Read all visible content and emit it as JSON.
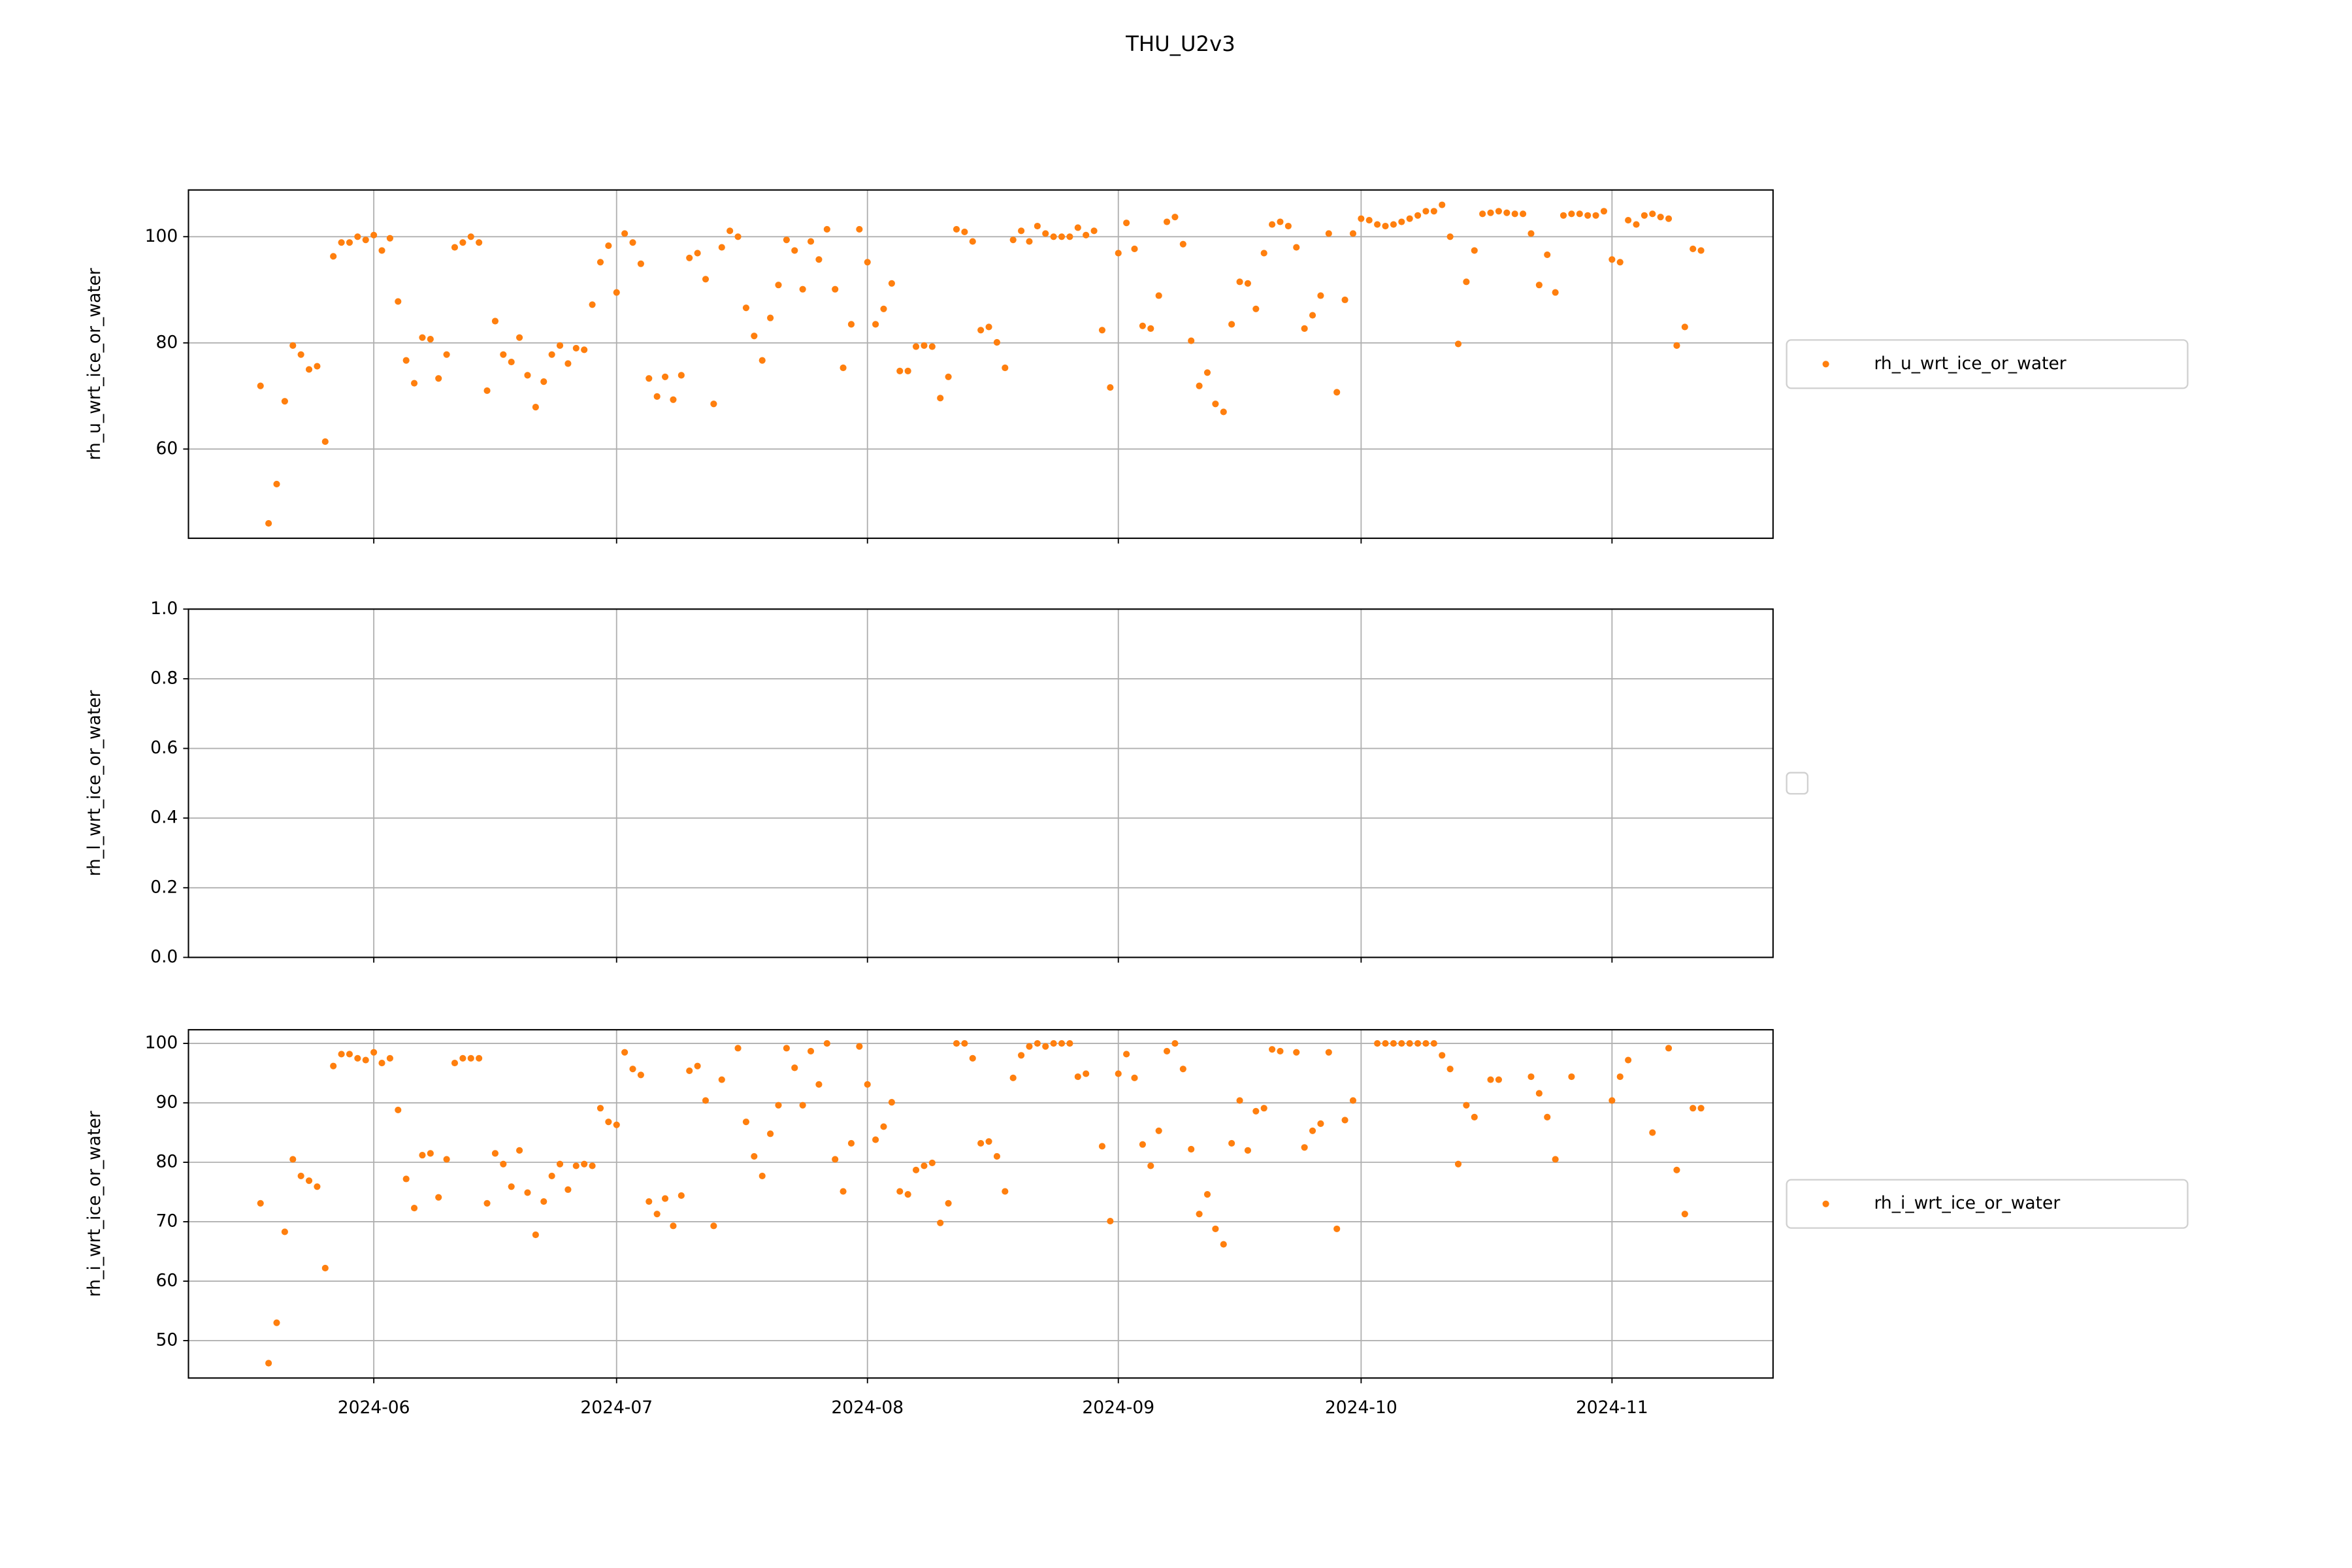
{
  "title": "THU_U2v3",
  "chart_data": [
    {
      "type": "scatter",
      "ylabel": "rh_u_wrt_ice_or_water",
      "x": [
        19861,
        19862,
        19863,
        19864,
        19865,
        19866,
        19867,
        19868,
        19869,
        19870,
        19871,
        19872,
        19873,
        19874,
        19875,
        19876,
        19877,
        19878,
        19879,
        19880,
        19881,
        19882,
        19883,
        19884,
        19885,
        19886,
        19887,
        19888,
        19889,
        19890,
        19891,
        19892,
        19893,
        19894,
        19895,
        19896,
        19897,
        19898,
        19899,
        19900,
        19901,
        19902,
        19903,
        19904,
        19905,
        19906,
        19907,
        19908,
        19909,
        19910,
        19911,
        19912,
        19913,
        19914,
        19915,
        19916,
        19917,
        19918,
        19919,
        19920,
        19921,
        19922,
        19923,
        19924,
        19925,
        19926,
        19927,
        19928,
        19929,
        19930,
        19931,
        19932,
        19933,
        19934,
        19935,
        19936,
        19937,
        19938,
        19939,
        19940,
        19941,
        19942,
        19943,
        19944,
        19945,
        19946,
        19947,
        19948,
        19949,
        19950,
        19951,
        19952,
        19953,
        19954,
        19955,
        19956,
        19957,
        19958,
        19959,
        19960,
        19961,
        19962,
        19963,
        19964,
        19965,
        19966,
        19967,
        19968,
        19969,
        19970,
        19971,
        19972,
        19973,
        19974,
        19975,
        19976,
        19977,
        19978,
        19979,
        19980,
        19981,
        19982,
        19983,
        19984,
        19985,
        19986,
        19987,
        19988,
        19989,
        19990,
        19991,
        19992,
        19993,
        19994,
        19995,
        19996,
        19997,
        19998,
        19999,
        20000,
        20001,
        20002,
        20003,
        20004,
        20005,
        20006,
        20007,
        20008,
        20009,
        20010,
        20011,
        20012,
        20013,
        20014,
        20015,
        20016,
        20017,
        20018,
        20019,
        20020,
        20021,
        20022,
        20023,
        20024,
        20025,
        20026,
        20027,
        20028,
        20029,
        20030,
        20031,
        20032,
        20033,
        20034,
        20035,
        20036,
        20037,
        20038,
        20039
      ],
      "series": [
        {
          "name": "rh_u_wrt_ice_or_water",
          "color": "#ff7f0e",
          "values": [
            71.9,
            46.0,
            53.4,
            69.0,
            79.5,
            77.8,
            75.0,
            75.6,
            61.4,
            96.3,
            98.9,
            98.9,
            100,
            99.4,
            100.3,
            97.4,
            99.7,
            87.8,
            76.7,
            72.4,
            81.0,
            80.7,
            73.3,
            77.8,
            98.0,
            98.9,
            100,
            98.9,
            71.0,
            84.1,
            77.8,
            76.4,
            81.0,
            73.9,
            67.9,
            72.7,
            77.8,
            79.5,
            76.1,
            79.0,
            78.7,
            87.2,
            95.2,
            98.3,
            89.5,
            100.6,
            98.9,
            94.9,
            73.3,
            69.9,
            73.6,
            69.3,
            73.9,
            96.0,
            96.9,
            92.0,
            68.5,
            98.0,
            101.1,
            100,
            86.6,
            81.3,
            76.7,
            84.7,
            90.9,
            99.4,
            97.4,
            90.1,
            99.1,
            95.7,
            101.4,
            90.1,
            75.3,
            83.5,
            101.4,
            95.2,
            83.5,
            86.4,
            91.2,
            74.7,
            74.7,
            79.3,
            79.5,
            79.3,
            69.6,
            73.6,
            101.4,
            100.9,
            99.1,
            82.4,
            83.0,
            80.1,
            75.3,
            99.4,
            101.1,
            99.1,
            102.0,
            100.6,
            100,
            100,
            100,
            101.7,
            100.3,
            101.1,
            82.4,
            71.6,
            96.9,
            102.6,
            97.7,
            83.2,
            82.7,
            88.9,
            102.8,
            103.7,
            98.6,
            80.4,
            71.9,
            74.4,
            68.5,
            67.0,
            83.5,
            91.5,
            91.2,
            86.4,
            96.9,
            102.3,
            102.8,
            102.0,
            98.0,
            82.7,
            85.2,
            88.9,
            100.6,
            70.7,
            88.1,
            100.6,
            103.4,
            103.1,
            102.3,
            102.0,
            102.3,
            102.8,
            103.4,
            104.0,
            104.8,
            104.8,
            106.0,
            100,
            79.8,
            91.5,
            97.4,
            104.3,
            104.5,
            104.8,
            104.5,
            104.3,
            104.3,
            100.6,
            90.9,
            96.6,
            89.5,
            104.0,
            104.3,
            104.3,
            104.0,
            104.0,
            104.8,
            95.7,
            95.2,
            103.1,
            102.3,
            104.0,
            104.3,
            103.7,
            103.4,
            79.5,
            83.0,
            97.7,
            97.4
          ]
        }
      ],
      "xlim": [
        19852.1,
        20047.9
      ],
      "ylim": [
        43.2,
        108.8
      ],
      "xticks": [
        19875,
        19905,
        19936,
        19967,
        19997,
        20028
      ],
      "yticks": [
        60,
        80,
        100
      ],
      "grid": true,
      "legend": "right"
    },
    {
      "type": "scatter",
      "ylabel": "rh_l_wrt_ice_or_water",
      "x": [],
      "series": [],
      "xlim": [
        19852.1,
        20047.9
      ],
      "ylim": [
        0,
        1
      ],
      "xticks": [
        19875,
        19905,
        19936,
        19967,
        19997,
        20028
      ],
      "yticks": [
        {
          "value": 0,
          "label": "0.0"
        },
        0.2,
        0.4,
        0.6,
        0.8,
        {
          "value": 1,
          "label": "1.0"
        }
      ],
      "grid": true,
      "legend": "right"
    },
    {
      "type": "scatter",
      "ylabel": "rh_i_wrt_ice_or_water",
      "x": [
        19861,
        19862,
        19863,
        19864,
        19865,
        19866,
        19867,
        19868,
        19869,
        19870,
        19871,
        19872,
        19873,
        19874,
        19875,
        19876,
        19877,
        19878,
        19879,
        19880,
        19881,
        19882,
        19883,
        19884,
        19885,
        19886,
        19887,
        19888,
        19889,
        19890,
        19891,
        19892,
        19893,
        19894,
        19895,
        19896,
        19897,
        19898,
        19899,
        19900,
        19901,
        19902,
        19903,
        19904,
        19905,
        19906,
        19907,
        19908,
        19909,
        19910,
        19911,
        19912,
        19913,
        19914,
        19915,
        19916,
        19917,
        19918,
        19920,
        19921,
        19922,
        19923,
        19924,
        19925,
        19926,
        19927,
        19928,
        19929,
        19930,
        19931,
        19932,
        19933,
        19934,
        19935,
        19936,
        19937,
        19938,
        19939,
        19940,
        19941,
        19942,
        19943,
        19944,
        19945,
        19946,
        19947,
        19948,
        19949,
        19950,
        19951,
        19952,
        19953,
        19954,
        19955,
        19956,
        19957,
        19958,
        19959,
        19960,
        19961,
        19962,
        19963,
        19965,
        19966,
        19967,
        19968,
        19969,
        19970,
        19971,
        19972,
        19973,
        19974,
        19975,
        19976,
        19977,
        19978,
        19979,
        19980,
        19981,
        19982,
        19983,
        19984,
        19985,
        19986,
        19987,
        19989,
        19990,
        19991,
        19992,
        19993,
        19994,
        19995,
        19996,
        19999,
        20000,
        20001,
        20002,
        20003,
        20004,
        20005,
        20006,
        20007,
        20008,
        20009,
        20010,
        20011,
        20013,
        20014,
        20018,
        20019,
        20020,
        20021,
        20023,
        20028,
        20029,
        20030,
        20033,
        20035,
        20036,
        20037,
        20038,
        20039
      ],
      "series": [
        {
          "name": "rh_i_wrt_ice_or_water",
          "color": "#ff7f0e",
          "values": [
            73.1,
            46.2,
            53.0,
            68.3,
            80.5,
            77.7,
            76.9,
            75.9,
            62.2,
            96.2,
            98.2,
            98.2,
            97.5,
            97.2,
            98.5,
            96.7,
            97.5,
            88.8,
            77.2,
            72.3,
            81.2,
            81.5,
            74.1,
            80.5,
            96.7,
            97.5,
            97.5,
            97.5,
            73.1,
            81.5,
            79.7,
            75.9,
            82.0,
            74.9,
            67.8,
            73.4,
            77.7,
            79.7,
            75.4,
            79.4,
            79.7,
            79.4,
            89.1,
            86.8,
            86.3,
            98.5,
            95.7,
            94.7,
            73.4,
            71.3,
            73.9,
            69.3,
            74.4,
            95.4,
            96.2,
            90.4,
            69.3,
            93.9,
            99.2,
            86.8,
            81.0,
            77.7,
            84.8,
            89.6,
            99.2,
            95.9,
            89.6,
            98.7,
            93.1,
            100,
            80.5,
            75.1,
            83.2,
            99.5,
            93.1,
            83.8,
            86.0,
            90.1,
            75.1,
            74.6,
            78.7,
            79.4,
            79.9,
            69.8,
            73.1,
            100,
            100,
            97.5,
            83.2,
            83.5,
            81.0,
            75.1,
            94.2,
            98.0,
            99.5,
            100,
            99.5,
            100,
            100,
            100,
            94.4,
            94.9,
            82.7,
            70.1,
            94.9,
            98.2,
            94.2,
            83.0,
            79.4,
            85.3,
            98.7,
            100,
            95.7,
            82.2,
            71.3,
            74.6,
            68.8,
            66.2,
            83.2,
            90.4,
            82.0,
            88.6,
            89.1,
            99.0,
            98.7,
            98.5,
            82.5,
            85.3,
            86.5,
            98.5,
            68.8,
            87.1,
            90.4,
            100,
            100,
            100,
            100,
            100,
            100,
            100,
            100,
            98.0,
            95.7,
            79.7,
            89.6,
            87.6,
            93.9,
            93.9,
            94.4,
            91.6,
            87.6,
            80.5,
            94.4,
            90.4,
            94.4,
            97.2,
            85.0,
            99.2,
            78.7,
            71.3,
            89.1,
            89.1
          ]
        }
      ],
      "xlim": [
        19852.1,
        20047.9
      ],
      "ylim": [
        43.7,
        102.3
      ],
      "xticks": [
        {
          "value": 19875,
          "label": "2024-06"
        },
        {
          "value": 19905,
          "label": "2024-07"
        },
        {
          "value": 19936,
          "label": "2024-08"
        },
        {
          "value": 19967,
          "label": "2024-09"
        },
        {
          "value": 19997,
          "label": "2024-10"
        },
        {
          "value": 20028,
          "label": "2024-11"
        }
      ],
      "yticks": [
        50,
        60,
        70,
        80,
        90,
        100
      ],
      "grid": true,
      "legend": "right"
    }
  ]
}
